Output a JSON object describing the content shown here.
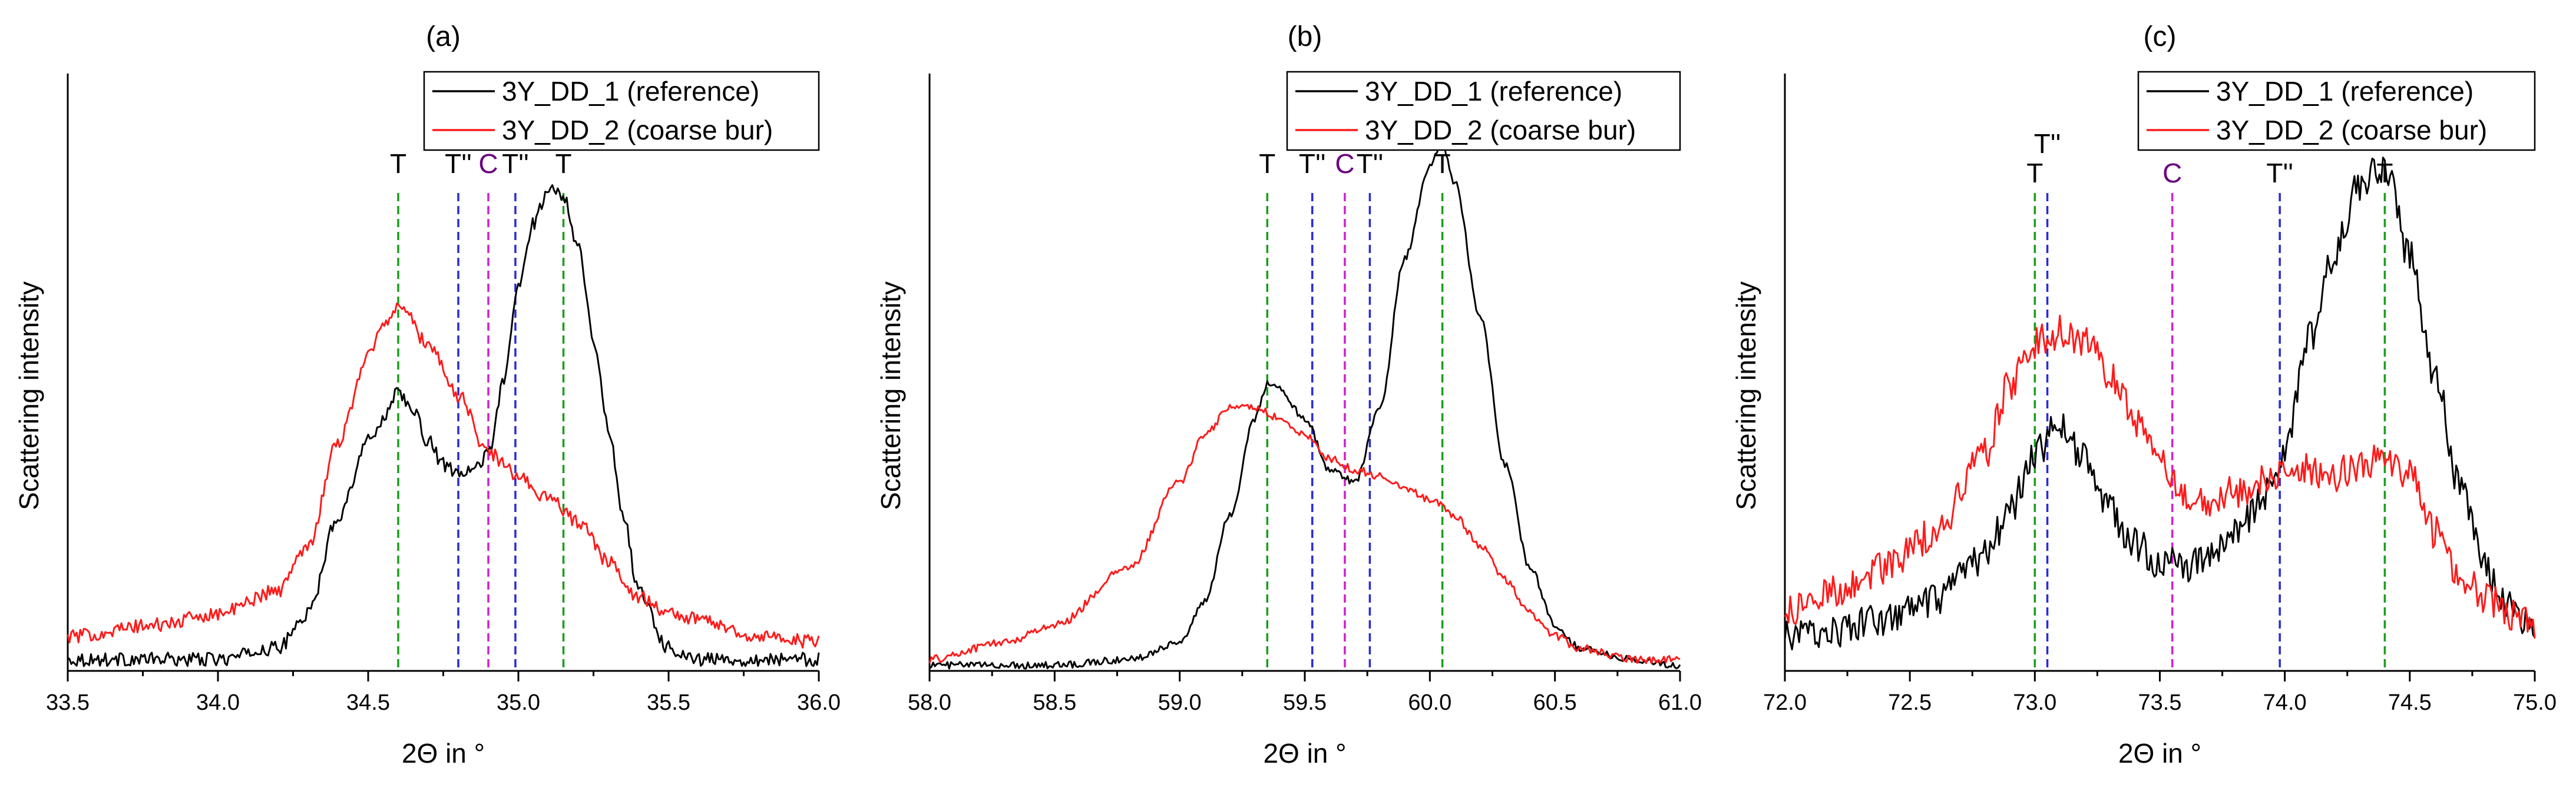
{
  "colors": {
    "reference": "#000000",
    "coarse_bur": "#ff1a1a",
    "T": "#1a9e1a",
    "T2": "#2a2ad4",
    "C": "#cc22cc"
  },
  "chart_data": [
    {
      "type": "line",
      "panel_label": "(a)",
      "xlabel": "2Θ in °",
      "ylabel": "Scattering intensity",
      "xlim": [
        33.5,
        36.0
      ],
      "ylim": [
        0,
        1
      ],
      "xticks": [
        33.5,
        34.0,
        34.5,
        35.0,
        35.5,
        36.0
      ],
      "tick_labels": [
        "33.5",
        "34.0",
        "34.5",
        "35.0",
        "35.5",
        "36.0"
      ],
      "legend": {
        "position": "top-right",
        "entries": [
          "3Y_DD_1 (reference)",
          "3Y_DD_2 (coarse bur)"
        ]
      },
      "reference_lines": [
        {
          "x": 34.6,
          "label": "T",
          "color": "T"
        },
        {
          "x": 34.8,
          "label": "T''",
          "color": "T2"
        },
        {
          "x": 34.9,
          "label": "C",
          "color": "C"
        },
        {
          "x": 34.99,
          "label": "T''",
          "color": "T2"
        },
        {
          "x": 35.15,
          "label": "T",
          "color": "T"
        }
      ],
      "series": [
        {
          "name": "3Y_DD_1 (reference)",
          "color": "reference",
          "noise": 0.012,
          "x": [
            33.5,
            33.8,
            34.0,
            34.2,
            34.3,
            34.4,
            34.5,
            34.55,
            34.6,
            34.65,
            34.7,
            34.75,
            34.8,
            34.85,
            34.9,
            34.95,
            35.0,
            35.05,
            35.1,
            35.15,
            35.2,
            35.25,
            35.3,
            35.35,
            35.4,
            35.5,
            35.6,
            35.8,
            36.0
          ],
          "y": [
            0.02,
            0.02,
            0.02,
            0.04,
            0.1,
            0.27,
            0.4,
            0.44,
            0.49,
            0.45,
            0.4,
            0.36,
            0.34,
            0.35,
            0.38,
            0.5,
            0.67,
            0.78,
            0.84,
            0.83,
            0.74,
            0.58,
            0.42,
            0.27,
            0.14,
            0.04,
            0.02,
            0.02,
            0.02
          ]
        },
        {
          "name": "3Y_DD_2 (coarse bur)",
          "color": "coarse_bur",
          "noise": 0.012,
          "x": [
            33.5,
            33.8,
            34.0,
            34.2,
            34.3,
            34.4,
            34.5,
            34.55,
            34.6,
            34.7,
            34.8,
            34.9,
            35.0,
            35.1,
            35.2,
            35.3,
            35.4,
            35.5,
            35.6,
            35.8,
            36.0
          ],
          "y": [
            0.06,
            0.08,
            0.1,
            0.14,
            0.22,
            0.4,
            0.55,
            0.6,
            0.64,
            0.57,
            0.48,
            0.38,
            0.34,
            0.3,
            0.26,
            0.19,
            0.13,
            0.1,
            0.09,
            0.06,
            0.05
          ]
        }
      ]
    },
    {
      "type": "line",
      "panel_label": "(b)",
      "xlabel": "2Θ in °",
      "ylabel": "Scattering intensity",
      "xlim": [
        58.0,
        61.0
      ],
      "ylim": [
        0,
        1
      ],
      "xticks": [
        58.0,
        58.5,
        59.0,
        59.5,
        60.0,
        60.5,
        61.0
      ],
      "tick_labels": [
        "58.0",
        "58.5",
        "59.0",
        "59.5",
        "60.0",
        "60.5",
        "61.0"
      ],
      "legend": {
        "position": "top-right",
        "entries": [
          "3Y_DD_1 (reference)",
          "3Y_DD_2 (coarse bur)"
        ]
      },
      "reference_lines": [
        {
          "x": 59.35,
          "label": "T",
          "color": "T"
        },
        {
          "x": 59.53,
          "label": "T''",
          "color": "T2"
        },
        {
          "x": 59.66,
          "label": "C",
          "color": "C"
        },
        {
          "x": 59.76,
          "label": "T''",
          "color": "T2"
        },
        {
          "x": 60.05,
          "label": "T",
          "color": "T"
        }
      ],
      "series": [
        {
          "name": "3Y_DD_1 (reference)",
          "color": "reference",
          "noise": 0.006,
          "x": [
            58.0,
            58.5,
            58.8,
            59.0,
            59.1,
            59.2,
            59.3,
            59.35,
            59.4,
            59.5,
            59.6,
            59.7,
            59.8,
            59.9,
            60.0,
            60.05,
            60.1,
            60.2,
            60.3,
            60.4,
            60.5,
            60.6,
            60.8,
            61.0
          ],
          "y": [
            0.01,
            0.01,
            0.02,
            0.05,
            0.12,
            0.27,
            0.44,
            0.5,
            0.49,
            0.44,
            0.35,
            0.33,
            0.46,
            0.72,
            0.88,
            0.92,
            0.85,
            0.62,
            0.36,
            0.18,
            0.08,
            0.04,
            0.02,
            0.01
          ]
        },
        {
          "name": "3Y_DD_2 (coarse bur)",
          "color": "coarse_bur",
          "noise": 0.007,
          "x": [
            58.0,
            58.3,
            58.5,
            58.8,
            59.0,
            59.1,
            59.2,
            59.3,
            59.4,
            59.5,
            59.6,
            59.7,
            59.8,
            59.9,
            60.0,
            60.1,
            60.2,
            60.3,
            60.4,
            60.5,
            60.6,
            60.8,
            61.0
          ],
          "y": [
            0.02,
            0.05,
            0.08,
            0.18,
            0.33,
            0.41,
            0.46,
            0.46,
            0.44,
            0.41,
            0.37,
            0.35,
            0.34,
            0.32,
            0.3,
            0.27,
            0.22,
            0.16,
            0.1,
            0.06,
            0.04,
            0.02,
            0.02
          ]
        }
      ]
    },
    {
      "type": "line",
      "panel_label": "(c)",
      "xlabel": "2Θ in °",
      "ylabel": "Scattering intensity",
      "xlim": [
        72.0,
        75.0
      ],
      "ylim": [
        0,
        1
      ],
      "xticks": [
        72.0,
        72.5,
        73.0,
        73.5,
        74.0,
        74.5,
        75.0
      ],
      "tick_labels": [
        "72.0",
        "72.5",
        "73.0",
        "73.5",
        "74.0",
        "74.5",
        "75.0"
      ],
      "legend": {
        "position": "top-right",
        "entries": [
          "3Y_DD_1 (reference)",
          "3Y_DD_2 (coarse bur)"
        ]
      },
      "reference_lines": [
        {
          "x": 73.0,
          "label": "T",
          "color": "T"
        },
        {
          "x": 73.05,
          "label": "T''",
          "color": "T2"
        },
        {
          "x": 73.55,
          "label": "C",
          "color": "C"
        },
        {
          "x": 73.98,
          "label": "T''",
          "color": "T2"
        },
        {
          "x": 74.4,
          "label": "T",
          "color": "T"
        }
      ],
      "series": [
        {
          "name": "3Y_DD_1 (reference)",
          "color": "reference",
          "noise": 0.03,
          "x": [
            72.0,
            72.2,
            72.4,
            72.6,
            72.8,
            72.9,
            73.0,
            73.1,
            73.2,
            73.3,
            73.4,
            73.5,
            73.6,
            73.7,
            73.8,
            73.9,
            74.0,
            74.1,
            74.2,
            74.3,
            74.4,
            74.5,
            74.6,
            74.7,
            74.8,
            74.9,
            75.0
          ],
          "y": [
            0.06,
            0.07,
            0.09,
            0.12,
            0.2,
            0.28,
            0.38,
            0.43,
            0.37,
            0.28,
            0.22,
            0.19,
            0.18,
            0.2,
            0.24,
            0.29,
            0.38,
            0.58,
            0.73,
            0.85,
            0.88,
            0.72,
            0.52,
            0.32,
            0.18,
            0.11,
            0.08
          ]
        },
        {
          "name": "3Y_DD_2 (coarse bur)",
          "color": "coarse_bur",
          "noise": 0.03,
          "x": [
            72.0,
            72.2,
            72.4,
            72.6,
            72.8,
            72.9,
            73.0,
            73.1,
            73.2,
            73.3,
            73.4,
            73.5,
            73.6,
            73.7,
            73.8,
            73.9,
            74.0,
            74.1,
            74.2,
            74.3,
            74.4,
            74.5,
            74.6,
            74.7,
            74.8,
            74.9,
            75.0
          ],
          "y": [
            0.1,
            0.14,
            0.18,
            0.24,
            0.38,
            0.5,
            0.57,
            0.59,
            0.57,
            0.52,
            0.44,
            0.36,
            0.3,
            0.3,
            0.31,
            0.33,
            0.34,
            0.35,
            0.34,
            0.36,
            0.37,
            0.34,
            0.24,
            0.17,
            0.13,
            0.1,
            0.08
          ]
        }
      ]
    }
  ]
}
